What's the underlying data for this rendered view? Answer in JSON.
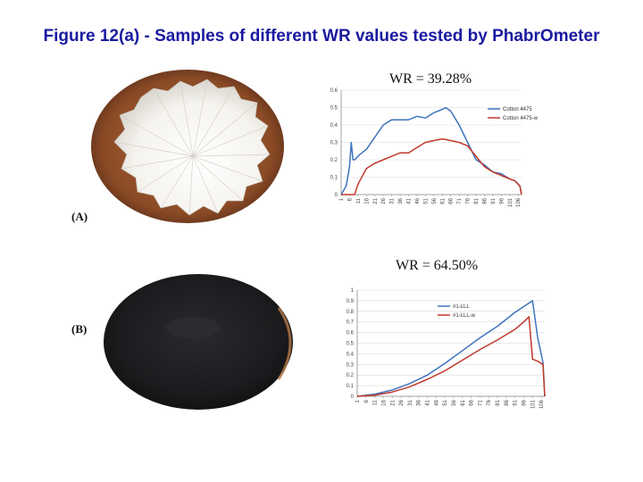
{
  "slide": {
    "title": "Figure 12(a) -  Samples of different WR values tested by PhabrOmeter"
  },
  "samples": [
    {
      "label": "(A)",
      "wr_text": "WR = 39.28%"
    },
    {
      "label": "(B)",
      "wr_text": "WR = 64.50%"
    }
  ],
  "colors": {
    "title": "#1a1aa0",
    "series_blue": "#3f74bd",
    "series_red": "#c0392b",
    "plate_wood": "#8a4a26",
    "fabric_white": "#f5f3ee",
    "fabric_black": "#1c1c1f"
  },
  "chart_data": [
    {
      "type": "line",
      "title": "",
      "xlabel": "",
      "ylabel": "",
      "ylim": [
        0,
        0.6
      ],
      "y_ticks": [
        "0",
        "0.1",
        "0.2",
        "0.3",
        "0.4",
        "0.5",
        "0.6"
      ],
      "x_ticks": [
        "1",
        "6",
        "11",
        "16",
        "21",
        "26",
        "31",
        "36",
        "41",
        "46",
        "51",
        "56",
        "61",
        "66",
        "71",
        "76",
        "81",
        "86",
        "91",
        "96",
        "101",
        "106"
      ],
      "grid": true,
      "legend": "top-right",
      "series": [
        {
          "name": "Cotton 4475",
          "color": "#3f74bd",
          "x": [
            1,
            4,
            6,
            7,
            8,
            9,
            12,
            16,
            21,
            26,
            31,
            36,
            41,
            46,
            51,
            56,
            61,
            63,
            66,
            71,
            76,
            81,
            86,
            91,
            96,
            101,
            104,
            107,
            108
          ],
          "y": [
            0,
            0.05,
            0.16,
            0.3,
            0.2,
            0.2,
            0.23,
            0.26,
            0.33,
            0.4,
            0.43,
            0.43,
            0.43,
            0.45,
            0.44,
            0.47,
            0.49,
            0.5,
            0.48,
            0.4,
            0.3,
            0.2,
            0.17,
            0.13,
            0.12,
            0.09,
            0.08,
            0.05,
            0
          ]
        },
        {
          "name": "Cotton 4475-w",
          "color": "#c0392b",
          "x": [
            1,
            6,
            9,
            11,
            16,
            21,
            26,
            31,
            36,
            41,
            46,
            51,
            56,
            61,
            66,
            71,
            76,
            81,
            86,
            91,
            96,
            101,
            104,
            107,
            108
          ],
          "y": [
            0,
            0,
            0,
            0.06,
            0.15,
            0.18,
            0.2,
            0.22,
            0.24,
            0.24,
            0.27,
            0.3,
            0.31,
            0.32,
            0.31,
            0.3,
            0.28,
            0.22,
            0.16,
            0.13,
            0.11,
            0.09,
            0.08,
            0.05,
            0
          ]
        }
      ]
    },
    {
      "type": "line",
      "title": "",
      "xlabel": "",
      "ylabel": "",
      "ylim": [
        0,
        1
      ],
      "y_ticks": [
        "0",
        "0.1",
        "0.2",
        "0.3",
        "0.4",
        "0.5",
        "0.6",
        "0.7",
        "0.8",
        "0.9",
        "1"
      ],
      "x_ticks": [
        "1",
        "6",
        "11",
        "16",
        "21",
        "26",
        "31",
        "36",
        "41",
        "46",
        "51",
        "56",
        "61",
        "66",
        "71",
        "76",
        "81",
        "86",
        "91",
        "96",
        "101",
        "106"
      ],
      "grid": true,
      "legend": "top-left",
      "series": [
        {
          "name": "#1-LLL",
          "color": "#3f74bd",
          "x": [
            1,
            11,
            21,
            31,
            41,
            51,
            61,
            71,
            81,
            91,
            101,
            104,
            107,
            108
          ],
          "y": [
            0,
            0.02,
            0.06,
            0.12,
            0.2,
            0.31,
            0.43,
            0.55,
            0.66,
            0.79,
            0.9,
            0.55,
            0.32,
            0
          ]
        },
        {
          "name": "#1-LLL-w",
          "color": "#c0392b",
          "x": [
            1,
            11,
            21,
            31,
            41,
            51,
            61,
            71,
            81,
            91,
            96,
            99,
            101,
            104,
            107,
            108
          ],
          "y": [
            0,
            0.01,
            0.04,
            0.09,
            0.16,
            0.24,
            0.34,
            0.44,
            0.53,
            0.63,
            0.7,
            0.75,
            0.35,
            0.33,
            0.3,
            0
          ]
        }
      ]
    }
  ]
}
